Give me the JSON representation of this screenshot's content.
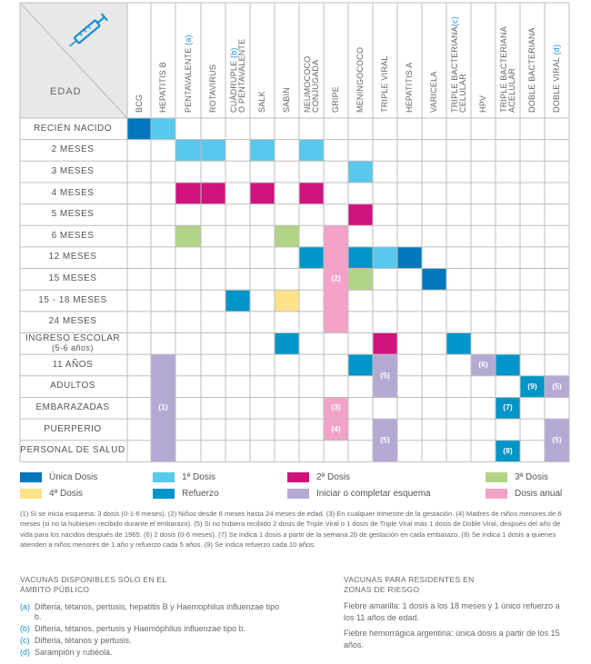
{
  "header": {
    "edad_label": "EDAD",
    "columns": [
      {
        "key": "bcg",
        "lines": [
          "BCG"
        ]
      },
      {
        "key": "hepb",
        "lines": [
          "HEPATITIS B"
        ]
      },
      {
        "key": "penta",
        "lines": [
          "PENTAVALENTE "
        ],
        "mark": "(a)"
      },
      {
        "key": "rota",
        "lines": [
          "ROTAVIRUS"
        ]
      },
      {
        "key": "cuad",
        "lines": [
          "CUÁDRUPLE ",
          "O PENTAVALENTE"
        ],
        "mark": "(b)"
      },
      {
        "key": "salk",
        "lines": [
          "SALK"
        ]
      },
      {
        "key": "sabin",
        "lines": [
          "SABIN"
        ]
      },
      {
        "key": "neumo",
        "lines": [
          "NEUMOCOCO",
          "CONJUGADA"
        ]
      },
      {
        "key": "gripe",
        "lines": [
          "GRIPE"
        ]
      },
      {
        "key": "mening",
        "lines": [
          "MENINGOCOCO"
        ]
      },
      {
        "key": "triplev",
        "lines": [
          "TRIPLE VIRAL"
        ]
      },
      {
        "key": "hepa",
        "lines": [
          "HEPATITIS A"
        ]
      },
      {
        "key": "varicela",
        "lines": [
          "VARICELA"
        ]
      },
      {
        "key": "tbcel",
        "lines": [
          "TRIPLE BACTERIANA",
          "CELULAR "
        ],
        "mark": "(c)"
      },
      {
        "key": "hpv",
        "lines": [
          "HPV"
        ]
      },
      {
        "key": "tbacel",
        "lines": [
          "TRIPLE BACTERIANA",
          "ACELULAR"
        ]
      },
      {
        "key": "dobleb",
        "lines": [
          "DOBLE BACTERIANA"
        ]
      },
      {
        "key": "doblev",
        "lines": [
          "DOBLE VIRAL "
        ],
        "mark": "(d)"
      }
    ]
  },
  "rows": [
    {
      "label": "RECIÉN NACIDO"
    },
    {
      "label": "2 MESES"
    },
    {
      "label": "3 MESES"
    },
    {
      "label": "4 MESES"
    },
    {
      "label": "5 MESES"
    },
    {
      "label": "6 MESES"
    },
    {
      "label": "12 MESES"
    },
    {
      "label": "15 MESES"
    },
    {
      "label": "15 - 18 MESES"
    },
    {
      "label": "24 MESES"
    },
    {
      "label": "INGRESO ESCOLAR",
      "sub": "(5-6 años)"
    },
    {
      "label": "11 AÑOS"
    },
    {
      "label": "ADULTOS"
    },
    {
      "label": "EMBARAZADAS"
    },
    {
      "label": "PUERPERIO"
    },
    {
      "label": "PERSONAL DE SALUD"
    }
  ],
  "colors": {
    "unica": "#0076bb",
    "dosis1": "#58c8ec",
    "dosis2": "#d0127c",
    "dosis3": "#b2d486",
    "dosis4": "#fde289",
    "refuerzo": "#0095c8",
    "esquema": "#b5a9d4",
    "anual": "#f4a3c8",
    "header_bg": "#e8e8e8",
    "grid": "#bdbdbd"
  },
  "cells": [
    {
      "r": 0,
      "c": 0,
      "t": "unica"
    },
    {
      "r": 0,
      "c": 1,
      "t": "dosis1"
    },
    {
      "r": 1,
      "c": 2,
      "t": "dosis1"
    },
    {
      "r": 1,
      "c": 3,
      "t": "dosis1"
    },
    {
      "r": 1,
      "c": 5,
      "t": "dosis1"
    },
    {
      "r": 1,
      "c": 7,
      "t": "dosis1"
    },
    {
      "r": 2,
      "c": 9,
      "t": "dosis1"
    },
    {
      "r": 3,
      "c": 2,
      "t": "dosis2"
    },
    {
      "r": 3,
      "c": 3,
      "t": "dosis2"
    },
    {
      "r": 3,
      "c": 5,
      "t": "dosis2"
    },
    {
      "r": 3,
      "c": 7,
      "t": "dosis2"
    },
    {
      "r": 4,
      "c": 9,
      "t": "dosis2"
    },
    {
      "r": 5,
      "c": 2,
      "t": "dosis3"
    },
    {
      "r": 5,
      "c": 6,
      "t": "dosis3"
    },
    {
      "r": 6,
      "c": 7,
      "t": "refuerzo"
    },
    {
      "r": 6,
      "c": 9,
      "t": "refuerzo"
    },
    {
      "r": 6,
      "c": 10,
      "t": "dosis1"
    },
    {
      "r": 6,
      "c": 11,
      "t": "unica"
    },
    {
      "r": 7,
      "c": 9,
      "t": "dosis3"
    },
    {
      "r": 7,
      "c": 12,
      "t": "unica"
    },
    {
      "r": 8,
      "c": 4,
      "t": "refuerzo"
    },
    {
      "r": 8,
      "c": 6,
      "t": "dosis4"
    },
    {
      "r": 10,
      "c": 6,
      "t": "refuerzo"
    },
    {
      "r": 10,
      "c": 10,
      "t": "dosis2"
    },
    {
      "r": 10,
      "c": 13,
      "t": "refuerzo"
    },
    {
      "r": 11,
      "c": 9,
      "t": "refuerzo"
    },
    {
      "r": 11,
      "c": 15,
      "t": "refuerzo"
    },
    {
      "r": 12,
      "c": 16,
      "t": "refuerzo"
    },
    {
      "r": 13,
      "c": 15,
      "t": "refuerzo"
    },
    {
      "r": 15,
      "c": 15,
      "t": "refuerzo"
    }
  ],
  "spans": [
    {
      "r0": 5,
      "r1": 9,
      "c": 8,
      "t": "anual",
      "label": "(2)"
    },
    {
      "r0": 11,
      "r1": 15,
      "c": 1,
      "t": "esquema",
      "label": "(1)"
    },
    {
      "r0": 11,
      "r1": 12,
      "c": 10,
      "t": "esquema",
      "label": "(5)"
    },
    {
      "r0": 11,
      "r1": 11,
      "c": 14,
      "t": "esquema",
      "label": "(6)"
    },
    {
      "r0": 12,
      "r1": 12,
      "c": 17,
      "t": "esquema",
      "label": "(5)"
    },
    {
      "r0": 13,
      "r1": 13,
      "c": 8,
      "t": "anual",
      "label": "(3)"
    },
    {
      "r0": 14,
      "r1": 14,
      "c": 8,
      "t": "anual",
      "label": "(4)"
    },
    {
      "r0": 14,
      "r1": 15,
      "c": 10,
      "t": "esquema",
      "label": "(5)"
    },
    {
      "r0": 14,
      "r1": 15,
      "c": 17,
      "t": "esquema",
      "label": "(5)"
    }
  ],
  "cell_labels": [
    {
      "r": 12,
      "c": 16,
      "label": "(9)"
    },
    {
      "r": 13,
      "c": 15,
      "label": "(7)"
    },
    {
      "r": 15,
      "c": 15,
      "label": "(8)"
    }
  ],
  "legend": [
    {
      "key": "unica",
      "label": "Única Dosis"
    },
    {
      "key": "dosis1",
      "label": "1ª Dosis"
    },
    {
      "key": "dosis2",
      "label": "2ª Dosis"
    },
    {
      "key": "dosis3",
      "label": "3ª Dosis"
    },
    {
      "key": "dosis4",
      "label": "4ª Dosis"
    },
    {
      "key": "refuerzo",
      "label": "Refuerzo"
    },
    {
      "key": "esquema",
      "label": "Iniciar o completar esquema"
    },
    {
      "key": "anual",
      "label": "Dosis anual"
    }
  ],
  "footnote": "(1) Si se inicia esquema: 3 dosis (0-1-6 meses). (2) Niños desde 6 meses hasta 24 meses de edad. (3) En cualquier trimestre de la gestación. (4) Madres de niños menores de 6 meses (si no la hubiesen recibido durante el embarazo). (5) Si no hubiera recibido 2 dosis de Triple Viral o 1 dosis de Triple Viral más 1 dosis de Doble Viral, después del año de vida para los nacidos después de 1965. (6) 2 dosis (0-6 meses). (7) Se indica 1 dosis a partir de la semana 20 de gestación en cada embarazo. (8) Se indica 1 dosis a quienes atienden a niños menores de 1 año y refuerzo cada 5 años. (9) Se indica refuerzo cada 10 años.",
  "publico": {
    "title": [
      "VACUNAS DISPONIBLES SÓLO EN EL",
      "ÁMBITO PÚBLICO"
    ],
    "items": [
      {
        "mark": "(a)",
        "text": "Difteria, tétanos, pertusis, hepatitis B y Haemophilus influenzae tipo b."
      },
      {
        "mark": "(b)",
        "text": "Difteria, tétanos, pertusis y Haemóphilus influenzae tipo b."
      },
      {
        "mark": "(c)",
        "text": "Difteria, tétanos y pertusis."
      },
      {
        "mark": "(d)",
        "text": "Sarampión y rubéola."
      }
    ]
  },
  "riesgo": {
    "title": [
      "VACUNAS PARA RESIDENTES EN",
      "ZONAS DE RIESGO"
    ],
    "items": [
      "Fiebre amarilla: 1 dosis a los 18 meses y 1 único refuerzo a los 11 años de edad.",
      "Fiebre hemorrágica argentina: única dosis a partir de los 15 años."
    ]
  }
}
